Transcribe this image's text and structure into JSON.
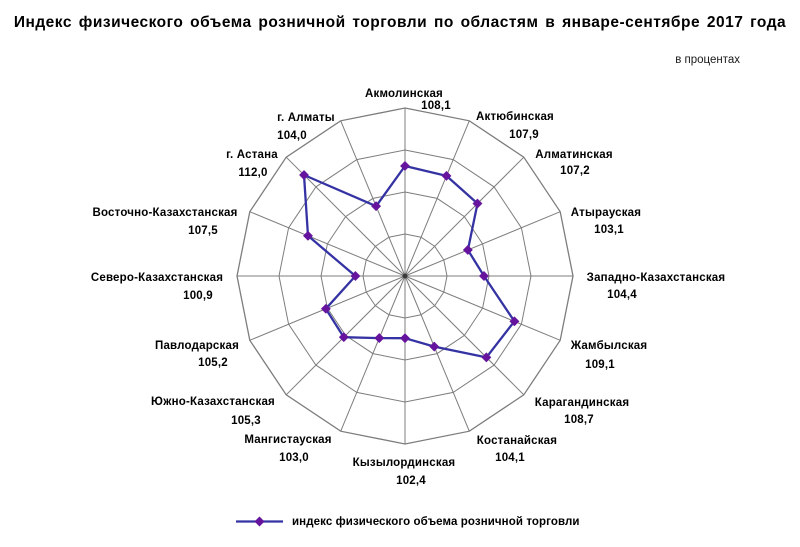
{
  "title": "Индекс физического объема розничной торговли по областям в январе-сентябре 2017 года",
  "units_note": "в процентах",
  "legend": {
    "label": "индекс физического объема розничной торговли",
    "position": "bottom"
  },
  "colors": {
    "series_line": "#3533A3",
    "marker": "#66149E",
    "grid": "#7d7d7d",
    "text": "#000000",
    "background": "#ffffff"
  },
  "chart_data": {
    "type": "radar",
    "title": "Индекс физического объема розничной торговли по областям в январе-сентябре 2017 года",
    "units": "в процентах",
    "categories": [
      "Акмолинская",
      "Актюбинская",
      "Алматинская",
      "Атырауская",
      "Западно-Казахстанская",
      "Жамбылская",
      "Карагандинская",
      "Костанайская",
      "Кызылординская",
      "Мангистауская",
      "Южно-Казахстанская",
      "Павлодарская",
      "Северо-Казахстанская",
      "Восточно-Казахстанская",
      "г. Астана",
      "г. Алматы"
    ],
    "series": [
      {
        "name": "индекс физического объема розничной торговли",
        "values": [
          108.1,
          107.9,
          107.2,
          103.1,
          104.4,
          109.1,
          108.7,
          104.1,
          102.4,
          103.0,
          105.3,
          105.2,
          100.9,
          107.5,
          112.0,
          104.0
        ]
      }
    ],
    "value_labels": [
      "108,1",
      "107,9",
      "107,2",
      "103,1",
      "104,4",
      "109,1",
      "108,7",
      "104,1",
      "102,4",
      "103,0",
      "105,3",
      "105,2",
      "100,9",
      "107,5",
      "112,0",
      "104,0"
    ],
    "axis": {
      "min": 95,
      "max": 115,
      "step": 5,
      "rings": 4,
      "tick_labels_visible": false
    },
    "grid": true,
    "legend_position": "bottom"
  }
}
